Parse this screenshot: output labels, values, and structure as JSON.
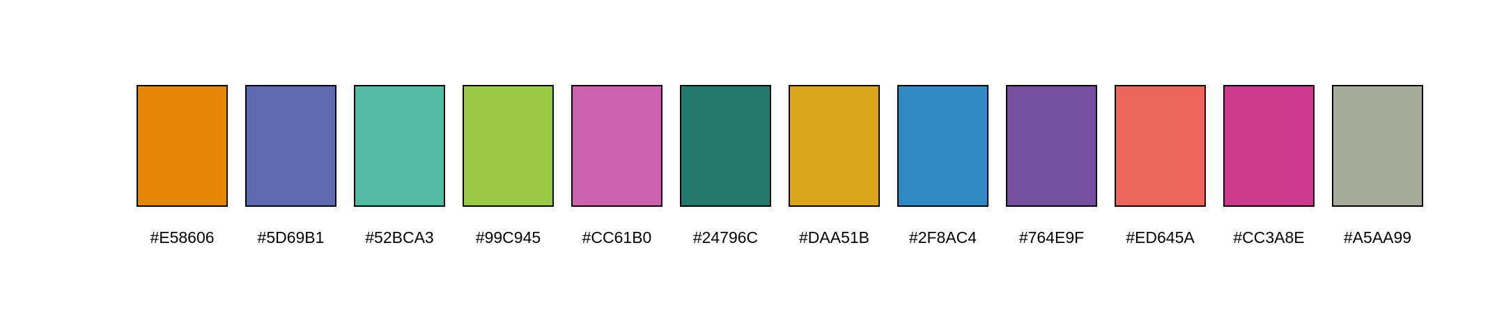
{
  "palette": {
    "swatches": [
      {
        "color": "#E58606",
        "label": "#E58606"
      },
      {
        "color": "#5D69B1",
        "label": "#5D69B1"
      },
      {
        "color": "#52BCA3",
        "label": "#52BCA3"
      },
      {
        "color": "#99C945",
        "label": "#99C945"
      },
      {
        "color": "#CC61B0",
        "label": "#CC61B0"
      },
      {
        "color": "#24796C",
        "label": "#24796C"
      },
      {
        "color": "#DAA51B",
        "label": "#DAA51B"
      },
      {
        "color": "#2F8AC4",
        "label": "#2F8AC4"
      },
      {
        "color": "#764E9F",
        "label": "#764E9F"
      },
      {
        "color": "#ED645A",
        "label": "#ED645A"
      },
      {
        "color": "#CC3A8E",
        "label": "#CC3A8E"
      },
      {
        "color": "#A5AA99",
        "label": "#A5AA99"
      }
    ]
  }
}
